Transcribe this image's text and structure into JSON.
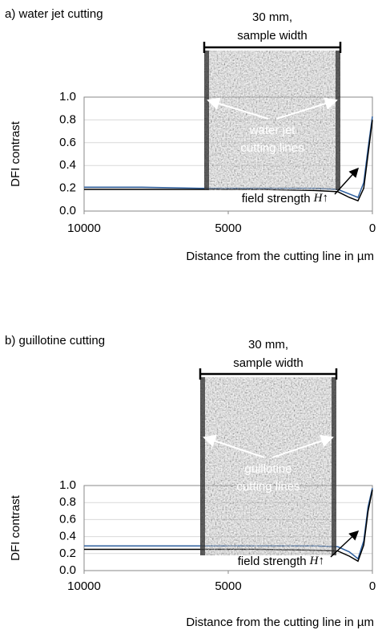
{
  "chart_data": [
    {
      "type": "line",
      "title": "a) water jet cutting",
      "ylabel": "DFI contrast",
      "xlabel": "Distance from the cutting line in µm",
      "annotations": [
        "30 mm,",
        "sample width",
        "water jet",
        "cutting lines",
        "field strength",
        "H↑"
      ],
      "x": [
        10000,
        8000,
        6000,
        4000,
        2000,
        1200,
        800,
        500,
        300,
        150,
        0
      ],
      "series": [
        {
          "color": "#2e5f9e",
          "values": [
            0.21,
            0.21,
            0.2,
            0.2,
            0.2,
            0.19,
            0.15,
            0.12,
            0.25,
            0.55,
            0.83
          ]
        },
        {
          "color": "#000000",
          "values": [
            0.19,
            0.19,
            0.19,
            0.19,
            0.18,
            0.17,
            0.12,
            0.09,
            0.2,
            0.5,
            0.8
          ]
        }
      ],
      "xlim": [
        10000,
        0
      ],
      "xticks": [
        10000,
        5000,
        0
      ],
      "ylim": [
        0,
        1
      ],
      "yticks": [
        {
          "value": 0,
          "label": "0.0"
        },
        0.2,
        0.4,
        0.6,
        0.8,
        {
          "value": 1,
          "label": "1.0"
        }
      ],
      "grid": true
    },
    {
      "type": "line",
      "title": "b) guillotine cutting",
      "ylabel": "DFI contrast",
      "xlabel": "Distance from the cutting line in µm",
      "annotations": [
        "30 mm,",
        "sample width",
        "guillotine",
        "cutting lines",
        "field strength",
        "H↑"
      ],
      "x": [
        10000,
        8000,
        6000,
        4000,
        2000,
        1200,
        800,
        500,
        300,
        150,
        0
      ],
      "series": [
        {
          "color": "#2e5f9e",
          "values": [
            0.29,
            0.29,
            0.29,
            0.29,
            0.29,
            0.28,
            0.22,
            0.14,
            0.35,
            0.75,
            0.97
          ]
        },
        {
          "color": "#000000",
          "values": [
            0.25,
            0.25,
            0.25,
            0.25,
            0.24,
            0.23,
            0.17,
            0.11,
            0.3,
            0.7,
            0.95
          ]
        }
      ],
      "xlim": [
        10000,
        0
      ],
      "xticks": [
        10000,
        5000,
        0
      ],
      "ylim": [
        0,
        1
      ],
      "yticks": [
        {
          "value": 0,
          "label": "0.0"
        },
        0.2,
        0.4,
        0.6,
        0.8,
        {
          "value": 1,
          "label": "1.0"
        }
      ],
      "grid": true
    }
  ]
}
